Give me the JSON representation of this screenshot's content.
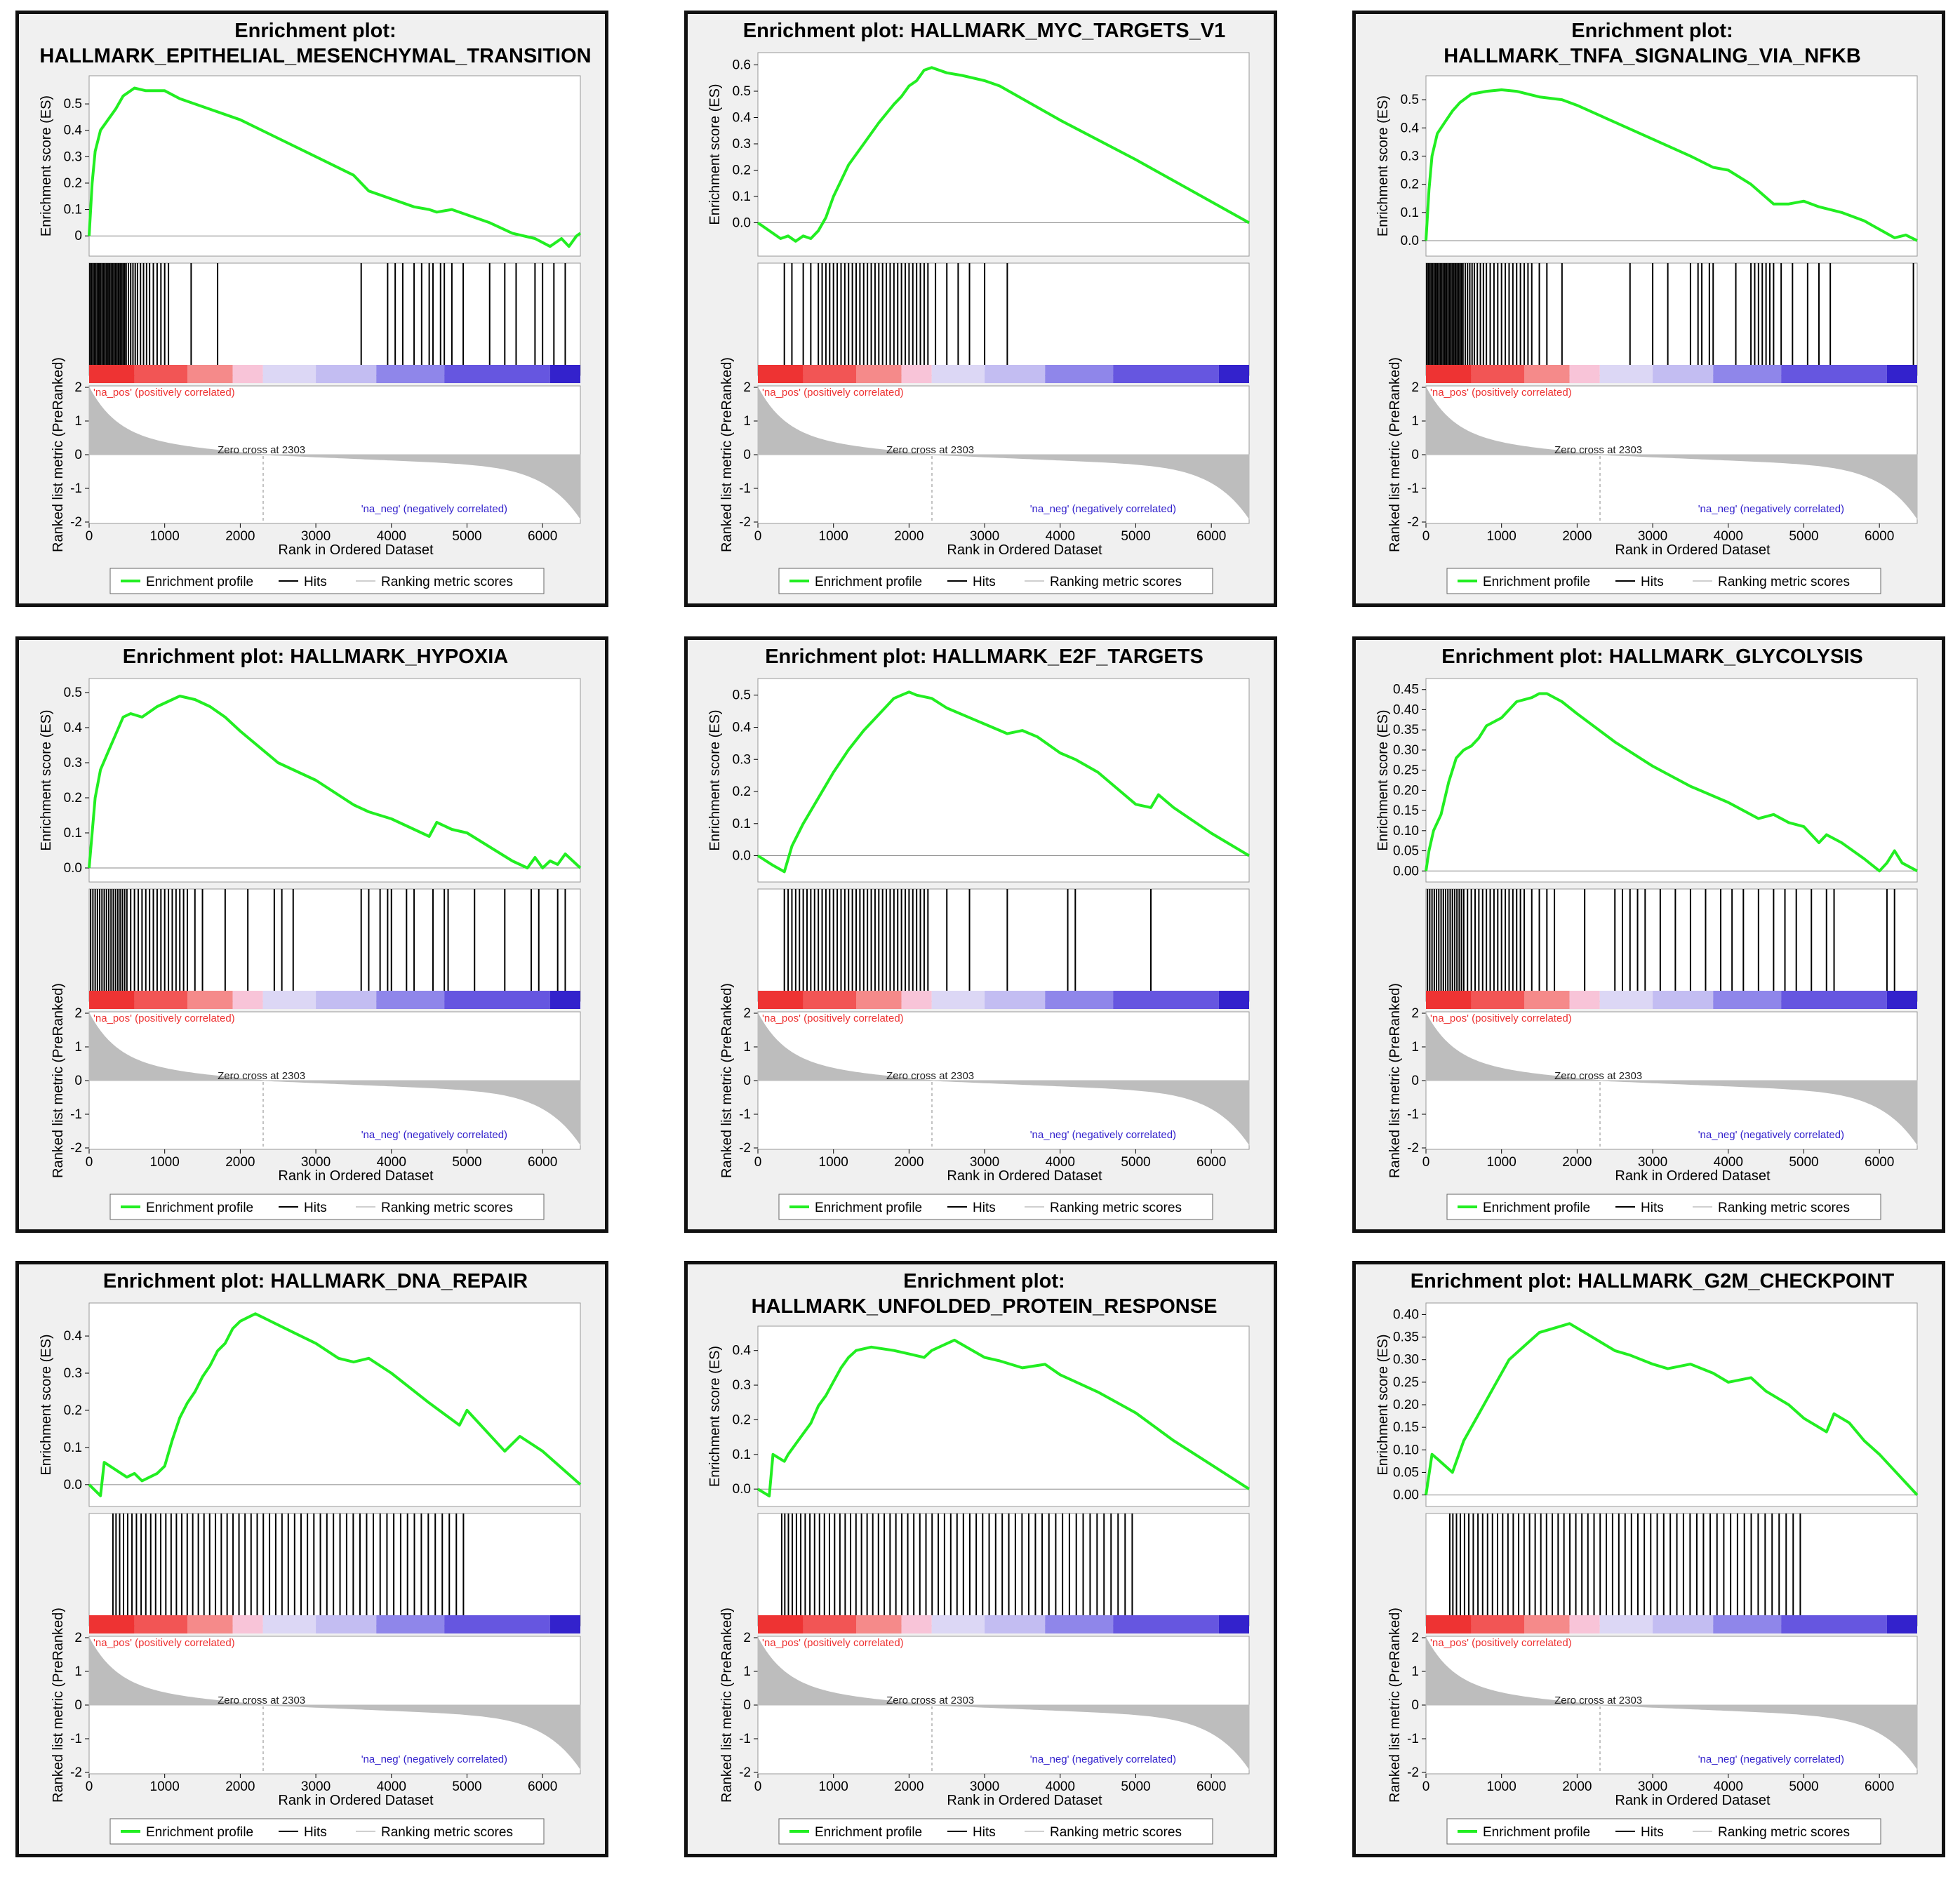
{
  "common": {
    "ylabel_top": "Enrichment score (ES)",
    "ylabel_bottom": "Ranked list metric (PreRanked)",
    "xlabel": "Rank in Ordered Dataset",
    "pos_label": "'na_pos' (positively correlated)",
    "neg_label": "'na_neg' (negatively correlated)",
    "zero_cross": "Zero cross at 2303",
    "legend": [
      "Enrichment profile",
      "Hits",
      "Ranking metric scores"
    ],
    "colors": {
      "profile": "#22ee22",
      "hits": "#000000",
      "metric": "#bdbdbd",
      "pos": "#ee3333",
      "neg": "#3322cc"
    }
  },
  "chart_data": [
    {
      "type": "line",
      "title": [
        "Enrichment plot:",
        "HALLMARK_EPITHELIAL_MESENCHYMAL_TRANSITION"
      ],
      "xlabel": "Rank in Ordered Dataset",
      "ylabel": "Enrichment score (ES)",
      "xlim": [
        0,
        6500
      ],
      "ylim": [
        -0.05,
        0.58
      ],
      "yticks": [
        0,
        0.1,
        0.2,
        0.3,
        0.4,
        0.5
      ],
      "ytick_labels": [
        "0",
        "0.1",
        "0.2",
        "0.3",
        "0.4",
        "0.5"
      ],
      "xticks": [
        0,
        1000,
        2000,
        3000,
        4000,
        5000,
        6000
      ],
      "x": [
        0,
        40,
        80,
        150,
        250,
        350,
        450,
        600,
        750,
        900,
        1000,
        1200,
        1500,
        2000,
        2500,
        3000,
        3500,
        3700,
        4000,
        4300,
        4500,
        4600,
        4800,
        5000,
        5300,
        5600,
        5900,
        6100,
        6250,
        6350,
        6450,
        6500
      ],
      "y": [
        0,
        0.2,
        0.32,
        0.4,
        0.44,
        0.48,
        0.53,
        0.56,
        0.55,
        0.55,
        0.55,
        0.52,
        0.49,
        0.44,
        0.37,
        0.3,
        0.23,
        0.17,
        0.14,
        0.11,
        0.1,
        0.09,
        0.1,
        0.08,
        0.05,
        0.01,
        -0.01,
        -0.04,
        -0.01,
        -0.04,
        0,
        0.01
      ],
      "hits": [
        10,
        30,
        50,
        70,
        90,
        110,
        130,
        150,
        170,
        190,
        210,
        230,
        250,
        270,
        290,
        310,
        330,
        350,
        370,
        390,
        410,
        430,
        450,
        470,
        490,
        520,
        550,
        580,
        610,
        640,
        680,
        720,
        760,
        800,
        850,
        900,
        950,
        1000,
        1050,
        1350,
        1700,
        3600,
        3950,
        4050,
        4150,
        4300,
        4400,
        4500,
        4550,
        4650,
        4700,
        4800,
        4950,
        5300,
        5500,
        5650,
        5900,
        6000,
        6150,
        6300
      ]
    },
    {
      "type": "line",
      "title": [
        "Enrichment plot: HALLMARK_MYC_TARGETS_V1"
      ],
      "xlabel": "Rank in Ordered Dataset",
      "ylabel": "Enrichment score (ES)",
      "xlim": [
        0,
        6500
      ],
      "ylim": [
        -0.1,
        0.62
      ],
      "yticks": [
        0,
        0.1,
        0.2,
        0.3,
        0.4,
        0.5,
        0.6
      ],
      "ytick_labels": [
        "0.0",
        "0.1",
        "0.2",
        "0.3",
        "0.4",
        "0.5",
        "0.6"
      ],
      "xticks": [
        0,
        1000,
        2000,
        3000,
        4000,
        5000,
        6000
      ],
      "x": [
        0,
        200,
        300,
        400,
        500,
        600,
        700,
        800,
        900,
        1000,
        1100,
        1200,
        1400,
        1600,
        1800,
        1900,
        2000,
        2100,
        2200,
        2300,
        2500,
        2700,
        3000,
        3200,
        4000,
        5000,
        6000,
        6500
      ],
      "y": [
        0,
        -0.04,
        -0.06,
        -0.05,
        -0.07,
        -0.05,
        -0.06,
        -0.03,
        0.02,
        0.1,
        0.16,
        0.22,
        0.3,
        0.38,
        0.45,
        0.48,
        0.52,
        0.54,
        0.58,
        0.59,
        0.57,
        0.56,
        0.54,
        0.52,
        0.39,
        0.24,
        0.08,
        0
      ],
      "hits": [
        350,
        450,
        600,
        700,
        800,
        850,
        900,
        950,
        1000,
        1050,
        1100,
        1150,
        1200,
        1250,
        1300,
        1350,
        1400,
        1450,
        1500,
        1550,
        1600,
        1650,
        1700,
        1750,
        1800,
        1850,
        1900,
        1950,
        2000,
        2050,
        2100,
        2150,
        2200,
        2250,
        2350,
        2500,
        2650,
        2800,
        3000,
        3300
      ]
    },
    {
      "type": "line",
      "title": [
        "Enrichment plot:",
        "HALLMARK_TNFA_SIGNALING_VIA_NFKB"
      ],
      "xlabel": "Rank in Ordered Dataset",
      "ylabel": "Enrichment score (ES)",
      "xlim": [
        0,
        6500
      ],
      "ylim": [
        -0.03,
        0.56
      ],
      "yticks": [
        0,
        0.1,
        0.2,
        0.3,
        0.4,
        0.5
      ],
      "ytick_labels": [
        "0.0",
        "0.1",
        "0.2",
        "0.3",
        "0.4",
        "0.5"
      ],
      "xticks": [
        0,
        1000,
        2000,
        3000,
        4000,
        5000,
        6000
      ],
      "x": [
        0,
        40,
        80,
        150,
        250,
        350,
        450,
        600,
        800,
        1000,
        1200,
        1500,
        1800,
        2000,
        2500,
        3000,
        3500,
        3800,
        4000,
        4300,
        4600,
        4800,
        5000,
        5200,
        5500,
        5800,
        6000,
        6200,
        6350,
        6500
      ],
      "y": [
        0,
        0.18,
        0.3,
        0.38,
        0.42,
        0.46,
        0.49,
        0.52,
        0.53,
        0.535,
        0.53,
        0.51,
        0.5,
        0.48,
        0.42,
        0.36,
        0.3,
        0.26,
        0.25,
        0.2,
        0.13,
        0.13,
        0.14,
        0.12,
        0.1,
        0.07,
        0.04,
        0.01,
        0.02,
        0
      ],
      "hits": [
        10,
        30,
        50,
        70,
        90,
        110,
        130,
        150,
        170,
        190,
        210,
        230,
        250,
        270,
        290,
        310,
        330,
        350,
        370,
        390,
        410,
        430,
        450,
        470,
        490,
        520,
        550,
        580,
        610,
        640,
        680,
        720,
        760,
        800,
        850,
        900,
        950,
        1000,
        1050,
        1100,
        1150,
        1200,
        1250,
        1300,
        1350,
        1400,
        1500,
        1600,
        1800,
        2700,
        3000,
        3200,
        3500,
        3600,
        3650,
        3750,
        3800,
        4100,
        4300,
        4350,
        4400,
        4450,
        4500,
        4550,
        4600,
        4700,
        4850,
        5050,
        5200,
        5350,
        6450
      ]
    },
    {
      "type": "line",
      "title": [
        "Enrichment plot: HALLMARK_HYPOXIA"
      ],
      "xlabel": "Rank in Ordered Dataset",
      "ylabel": "Enrichment score (ES)",
      "xlim": [
        0,
        6500
      ],
      "ylim": [
        -0.02,
        0.52
      ],
      "yticks": [
        0,
        0.1,
        0.2,
        0.3,
        0.4,
        0.5
      ],
      "ytick_labels": [
        "0.0",
        "0.1",
        "0.2",
        "0.3",
        "0.4",
        "0.5"
      ],
      "xticks": [
        0,
        1000,
        2000,
        3000,
        4000,
        5000,
        6000
      ],
      "x": [
        0,
        40,
        80,
        150,
        250,
        350,
        450,
        550,
        700,
        900,
        1100,
        1200,
        1400,
        1600,
        1800,
        2000,
        2500,
        3000,
        3500,
        3700,
        4000,
        4200,
        4500,
        4600,
        4800,
        5000,
        5300,
        5600,
        5800,
        5900,
        6000,
        6100,
        6200,
        6300,
        6500
      ],
      "y": [
        0,
        0.1,
        0.2,
        0.28,
        0.33,
        0.38,
        0.43,
        0.44,
        0.43,
        0.46,
        0.48,
        0.49,
        0.48,
        0.46,
        0.43,
        0.39,
        0.3,
        0.25,
        0.18,
        0.16,
        0.14,
        0.12,
        0.09,
        0.13,
        0.11,
        0.1,
        0.06,
        0.02,
        0,
        0.03,
        0,
        0.02,
        0.01,
        0.04,
        0
      ],
      "hits": [
        20,
        50,
        80,
        110,
        140,
        170,
        200,
        230,
        260,
        290,
        320,
        350,
        380,
        410,
        440,
        470,
        500,
        550,
        600,
        650,
        700,
        750,
        800,
        850,
        900,
        950,
        1000,
        1050,
        1100,
        1150,
        1200,
        1250,
        1300,
        1400,
        1500,
        1800,
        2100,
        2450,
        2550,
        2700,
        3600,
        3700,
        3850,
        3950,
        4000,
        4200,
        4300,
        4550,
        4700,
        4750,
        5100,
        5500,
        5850,
        5950,
        6200,
        6300
      ]
    },
    {
      "type": "line",
      "title": [
        "Enrichment plot: HALLMARK_E2F_TARGETS"
      ],
      "xlabel": "Rank in Ordered Dataset",
      "ylabel": "Enrichment score (ES)",
      "xlim": [
        0,
        6500
      ],
      "ylim": [
        -0.06,
        0.53
      ],
      "yticks": [
        0,
        0.1,
        0.2,
        0.3,
        0.4,
        0.5
      ],
      "ytick_labels": [
        "0.0",
        "0.1",
        "0.2",
        "0.3",
        "0.4",
        "0.5"
      ],
      "xticks": [
        0,
        1000,
        2000,
        3000,
        4000,
        5000,
        6000
      ],
      "x": [
        0,
        200,
        350,
        450,
        600,
        800,
        1000,
        1200,
        1400,
        1600,
        1800,
        1900,
        2000,
        2100,
        2300,
        2500,
        2700,
        3000,
        3300,
        3500,
        3700,
        4000,
        4200,
        4500,
        4800,
        5000,
        5200,
        5300,
        5500,
        6000,
        6500
      ],
      "y": [
        0,
        -0.03,
        -0.05,
        0.03,
        0.1,
        0.18,
        0.26,
        0.33,
        0.39,
        0.44,
        0.49,
        0.5,
        0.51,
        0.5,
        0.49,
        0.46,
        0.44,
        0.41,
        0.38,
        0.39,
        0.37,
        0.32,
        0.3,
        0.26,
        0.2,
        0.16,
        0.15,
        0.19,
        0.15,
        0.07,
        0
      ],
      "hits": [
        350,
        400,
        450,
        500,
        550,
        600,
        650,
        700,
        750,
        800,
        850,
        900,
        950,
        1000,
        1050,
        1100,
        1150,
        1200,
        1250,
        1300,
        1350,
        1400,
        1450,
        1500,
        1550,
        1600,
        1650,
        1700,
        1750,
        1800,
        1850,
        1900,
        1950,
        2000,
        2050,
        2100,
        2150,
        2200,
        2250,
        2500,
        2800,
        3300,
        4100,
        4200,
        5200
      ]
    },
    {
      "type": "line",
      "title": [
        "Enrichment plot: HALLMARK_GLYCOLYSIS"
      ],
      "xlabel": "Rank in Ordered Dataset",
      "ylabel": "Enrichment score (ES)",
      "xlim": [
        0,
        6500
      ],
      "ylim": [
        -0.01,
        0.46
      ],
      "yticks": [
        0,
        0.05,
        0.1,
        0.15,
        0.2,
        0.25,
        0.3,
        0.35,
        0.4,
        0.45
      ],
      "ytick_labels": [
        "0.00",
        "0.05",
        "0.10",
        "0.15",
        "0.20",
        "0.25",
        "0.30",
        "0.35",
        "0.40",
        "0.45"
      ],
      "xticks": [
        0,
        1000,
        2000,
        3000,
        4000,
        5000,
        6000
      ],
      "x": [
        0,
        40,
        100,
        200,
        300,
        400,
        500,
        600,
        700,
        800,
        1000,
        1200,
        1400,
        1500,
        1600,
        1800,
        2000,
        2500,
        3000,
        3500,
        4000,
        4400,
        4600,
        4800,
        5000,
        5200,
        5300,
        5500,
        5800,
        6000,
        6100,
        6200,
        6300,
        6500
      ],
      "y": [
        0,
        0.05,
        0.1,
        0.14,
        0.22,
        0.28,
        0.3,
        0.31,
        0.33,
        0.36,
        0.38,
        0.42,
        0.43,
        0.44,
        0.44,
        0.42,
        0.39,
        0.32,
        0.26,
        0.21,
        0.17,
        0.13,
        0.14,
        0.12,
        0.11,
        0.07,
        0.09,
        0.07,
        0.03,
        0,
        0.02,
        0.05,
        0.02,
        0
      ],
      "hits": [
        20,
        50,
        80,
        110,
        140,
        170,
        200,
        230,
        260,
        290,
        320,
        350,
        380,
        410,
        440,
        470,
        500,
        550,
        600,
        650,
        700,
        750,
        800,
        850,
        900,
        950,
        1000,
        1050,
        1100,
        1150,
        1200,
        1250,
        1300,
        1400,
        1500,
        1600,
        1700,
        2100,
        2500,
        2600,
        2700,
        2800,
        2900,
        3100,
        3300,
        3500,
        3700,
        3900,
        4050,
        4200,
        4400,
        4600,
        4750,
        4900,
        5100,
        5300,
        5400,
        6100,
        6200
      ]
    },
    {
      "type": "line",
      "title": [
        "Enrichment plot: HALLMARK_DNA_REPAIR"
      ],
      "xlabel": "Rank in Ordered Dataset",
      "ylabel": "Enrichment score (ES)",
      "xlim": [
        0,
        6500
      ],
      "ylim": [
        -0.04,
        0.47
      ],
      "yticks": [
        0,
        0.1,
        0.2,
        0.3,
        0.4
      ],
      "ytick_labels": [
        "0.0",
        "0.1",
        "0.2",
        "0.3",
        "0.4"
      ],
      "xticks": [
        0,
        1000,
        2000,
        3000,
        4000,
        5000,
        6000
      ],
      "x": [
        0,
        150,
        200,
        500,
        600,
        700,
        800,
        900,
        1000,
        1100,
        1200,
        1300,
        1400,
        1500,
        1600,
        1700,
        1800,
        1900,
        2000,
        2100,
        2200,
        2300,
        2500,
        2700,
        3000,
        3300,
        3500,
        3700,
        4000,
        4500,
        4900,
        5000,
        5500,
        5700,
        6000,
        6500
      ],
      "y": [
        0,
        -0.03,
        0.06,
        0.02,
        0.03,
        0.01,
        0.02,
        0.03,
        0.05,
        0.12,
        0.18,
        0.22,
        0.25,
        0.29,
        0.32,
        0.36,
        0.38,
        0.42,
        0.44,
        0.45,
        0.46,
        0.45,
        0.43,
        0.41,
        0.38,
        0.34,
        0.33,
        0.34,
        0.3,
        0.22,
        0.16,
        0.2,
        0.09,
        0.13,
        0.09,
        0
      ]
    },
    {
      "type": "line",
      "title": [
        "Enrichment plot:",
        "HALLMARK_UNFOLDED_PROTEIN_RESPONSE"
      ],
      "xlabel": "Rank in Ordered Dataset",
      "ylabel": "Enrichment score (ES)",
      "xlim": [
        0,
        6500
      ],
      "ylim": [
        -0.03,
        0.45
      ],
      "yticks": [
        0,
        0.1,
        0.2,
        0.3,
        0.4
      ],
      "ytick_labels": [
        "0.0",
        "0.1",
        "0.2",
        "0.3",
        "0.4"
      ],
      "xticks": [
        0,
        1000,
        2000,
        3000,
        4000,
        5000,
        6000
      ],
      "x": [
        0,
        150,
        200,
        350,
        400,
        500,
        600,
        700,
        800,
        900,
        1000,
        1100,
        1200,
        1300,
        1500,
        1800,
        2000,
        2200,
        2300,
        2500,
        2600,
        3000,
        3200,
        3500,
        3800,
        4000,
        4500,
        5000,
        5500,
        6000,
        6500
      ],
      "y": [
        0,
        -0.02,
        0.1,
        0.08,
        0.1,
        0.13,
        0.16,
        0.19,
        0.24,
        0.27,
        0.31,
        0.35,
        0.38,
        0.4,
        0.41,
        0.4,
        0.39,
        0.38,
        0.4,
        0.42,
        0.43,
        0.38,
        0.37,
        0.35,
        0.36,
        0.33,
        0.28,
        0.22,
        0.14,
        0.07,
        0
      ]
    },
    {
      "type": "line",
      "title": [
        "Enrichment plot: HALLMARK_G2M_CHECKPOINT"
      ],
      "xlabel": "Rank in Ordered Dataset",
      "ylabel": "Enrichment score (ES)",
      "xlim": [
        0,
        6500
      ],
      "ylim": [
        -0.01,
        0.41
      ],
      "yticks": [
        0,
        0.05,
        0.1,
        0.15,
        0.2,
        0.25,
        0.3,
        0.35,
        0.4
      ],
      "ytick_labels": [
        "0.00",
        "0.05",
        "0.10",
        "0.15",
        "0.20",
        "0.25",
        "0.30",
        "0.35",
        "0.40"
      ],
      "xticks": [
        0,
        1000,
        2000,
        3000,
        4000,
        5000,
        6000
      ],
      "x": [
        0,
        80,
        150,
        350,
        500,
        700,
        900,
        1100,
        1300,
        1500,
        1700,
        1900,
        2100,
        2300,
        2500,
        2700,
        3000,
        3200,
        3500,
        3800,
        4000,
        4300,
        4500,
        4800,
        5000,
        5300,
        5400,
        5600,
        5800,
        6000,
        6500
      ],
      "y": [
        0,
        0.09,
        0.08,
        0.05,
        0.12,
        0.18,
        0.24,
        0.3,
        0.33,
        0.36,
        0.37,
        0.38,
        0.36,
        0.34,
        0.32,
        0.31,
        0.29,
        0.28,
        0.29,
        0.27,
        0.25,
        0.26,
        0.23,
        0.2,
        0.17,
        0.14,
        0.18,
        0.16,
        0.12,
        0.09,
        0
      ]
    }
  ]
}
